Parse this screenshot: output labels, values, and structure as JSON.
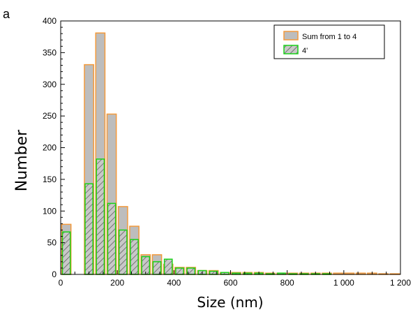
{
  "panel_label": "a",
  "colors": {
    "sum_fill": "#bdbdbd",
    "sum_stroke": "#f39a3c",
    "fourprime_stroke": "#19d219",
    "fourprime_hatch": "#555555"
  },
  "chart_data": {
    "type": "bar",
    "title": "",
    "xlabel": "Size (nm)",
    "ylabel": "Number",
    "xlim": [
      0,
      1200
    ],
    "ylim": [
      0,
      400
    ],
    "bin_width": 40,
    "x_ticks": [
      0,
      200,
      400,
      600,
      800,
      1000,
      1200
    ],
    "x_tick_labels": [
      "0",
      "200",
      "400",
      "600",
      "800",
      "1 000",
      "1 200"
    ],
    "y_ticks": [
      0,
      50,
      100,
      150,
      200,
      250,
      300,
      350,
      400
    ],
    "y_tick_labels": [
      "0",
      "50",
      "100",
      "150",
      "200",
      "250",
      "300",
      "350",
      "400"
    ],
    "grid": false,
    "legend_position": "top-right",
    "series": [
      {
        "name": "Sum from 1 to 4",
        "bin_starts": [
          0,
          40,
          80,
          120,
          160,
          200,
          240,
          280,
          320,
          360,
          400,
          440,
          480,
          520,
          560,
          600,
          640,
          680,
          720,
          760,
          800,
          840,
          880,
          920,
          960,
          1000,
          1040,
          1080,
          1120,
          1160
        ],
        "values": [
          79,
          0,
          331,
          381,
          253,
          107,
          76,
          31,
          31,
          16,
          11,
          11,
          6,
          6,
          3,
          3,
          3,
          3,
          2,
          2,
          2,
          2,
          2,
          2,
          2,
          2,
          2,
          2,
          1,
          1
        ]
      },
      {
        "name": "4'",
        "bin_starts": [
          0,
          40,
          80,
          120,
          160,
          200,
          240,
          280,
          320,
          360,
          400,
          440,
          480,
          520,
          560,
          600,
          640,
          680,
          720,
          760,
          800,
          840,
          880,
          920,
          960,
          1000,
          1040,
          1080,
          1120,
          1160
        ],
        "values": [
          67,
          0,
          143,
          182,
          112,
          70,
          55,
          28,
          20,
          24,
          10,
          10,
          6,
          5,
          3,
          2,
          2,
          2,
          1,
          2,
          1,
          1,
          1,
          1,
          0,
          0,
          0,
          0,
          0,
          0
        ]
      }
    ]
  }
}
